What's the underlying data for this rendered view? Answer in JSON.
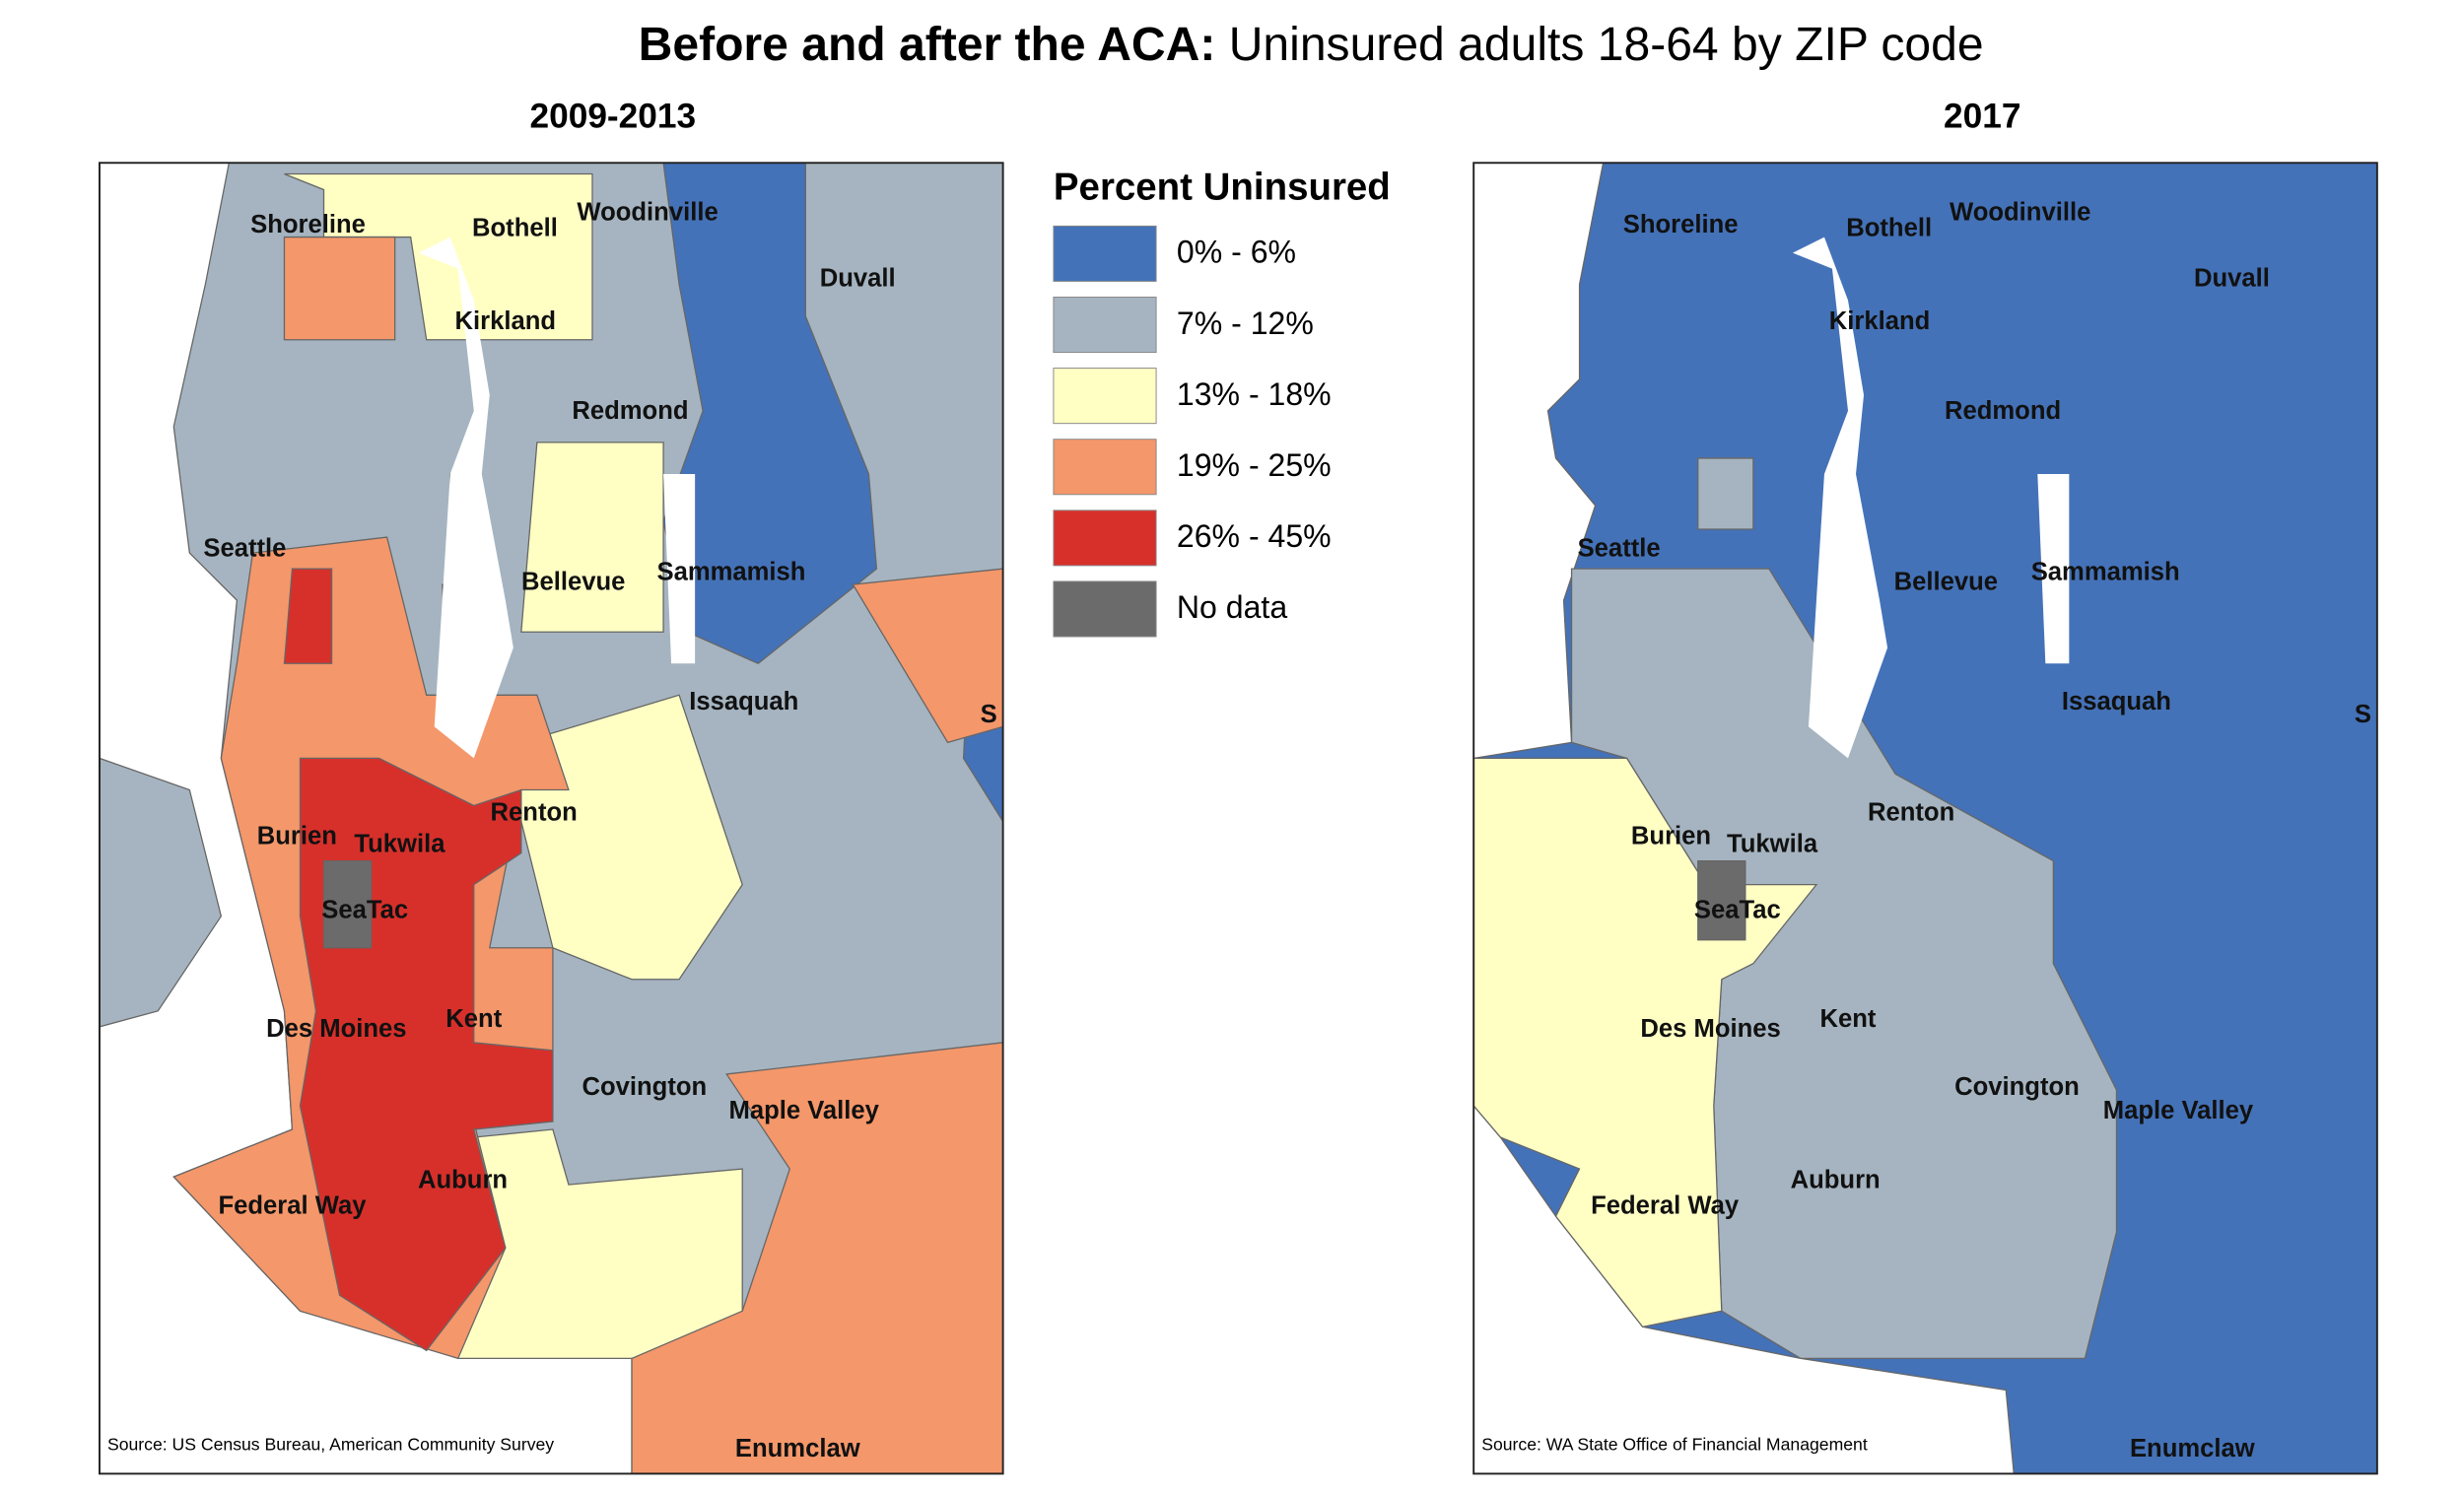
{
  "title": {
    "bold": "Before and after the ACA:",
    "rest": "Uninsured adults 18-64 by ZIP code"
  },
  "legend": {
    "title": "Percent Uninsured",
    "items": [
      {
        "label": "0% - 6%",
        "color": "#4472b8"
      },
      {
        "label": "7% - 12%",
        "color": "#a5b4c0"
      },
      {
        "label": "13% - 18%",
        "color": "#ffffc4"
      },
      {
        "label": "19% - 25%",
        "color": "#f4976a"
      },
      {
        "label": "26% - 45%",
        "color": "#d7302b"
      },
      {
        "label": "No data",
        "color": "#6b6b6b"
      }
    ]
  },
  "maps": [
    {
      "subtitle": "2009-2013",
      "source": "Source: US Census Bureau, American Community Survey",
      "labels": [
        "Shoreline",
        "Bothell",
        "Woodinville",
        "Duvall",
        "Kirkland",
        "Redmond",
        "Seattle",
        "Bellevue",
        "Sammamish",
        "Issaquah",
        "S",
        "Renton",
        "Burien",
        "Tukwila",
        "SeaTac",
        "Des Moines",
        "Kent",
        "Covington",
        "Maple Valley",
        "Auburn",
        "Federal Way",
        "Enumclaw"
      ]
    },
    {
      "subtitle": "2017",
      "source": "Source: WA State Office of Financial Management",
      "labels": [
        "Shoreline",
        "Bothell",
        "Woodinville",
        "Duvall",
        "Kirkland",
        "Redmond",
        "Seattle",
        "Bellevue",
        "Sammamish",
        "Issaquah",
        "S",
        "Renton",
        "Burien",
        "Tukwila",
        "SeaTac",
        "Des Moines",
        "Kent",
        "Covington",
        "Maple Valley",
        "Auburn",
        "Federal Way",
        "Enumclaw"
      ]
    }
  ]
}
